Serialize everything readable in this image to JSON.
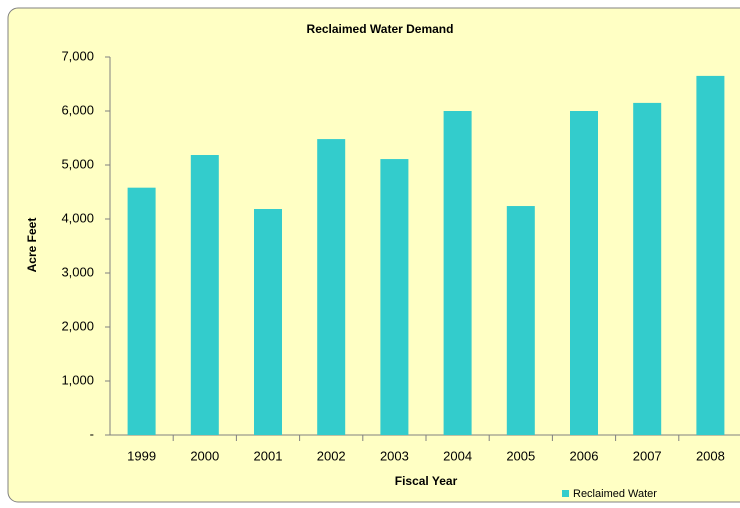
{
  "chart_data": {
    "type": "bar",
    "title": "Reclaimed Water Demand",
    "x_label": "Fiscal Year",
    "y_label": "Acre Feet",
    "categories": [
      "1999",
      "2000",
      "2001",
      "2002",
      "2003",
      "2004",
      "2005",
      "2006",
      "2007",
      "2008"
    ],
    "series": [
      {
        "name": "Reclaimed Water",
        "color": "#33cccc",
        "values": [
          4580,
          5185,
          4185,
          5480,
          5110,
          6000,
          4240,
          6000,
          6150,
          6650
        ]
      }
    ],
    "ylim": [
      0,
      7000
    ],
    "yticks": [
      {
        "value": 0,
        "label": "-"
      },
      {
        "value": 1000,
        "label": "1,000"
      },
      {
        "value": 2000,
        "label": "2,000"
      },
      {
        "value": 3000,
        "label": "3,000"
      },
      {
        "value": 4000,
        "label": "4,000"
      },
      {
        "value": 5000,
        "label": "5,000"
      },
      {
        "value": 6000,
        "label": "6,000"
      },
      {
        "value": 7000,
        "label": "7,000"
      }
    ],
    "grid": false,
    "legend": "bottom-right"
  }
}
